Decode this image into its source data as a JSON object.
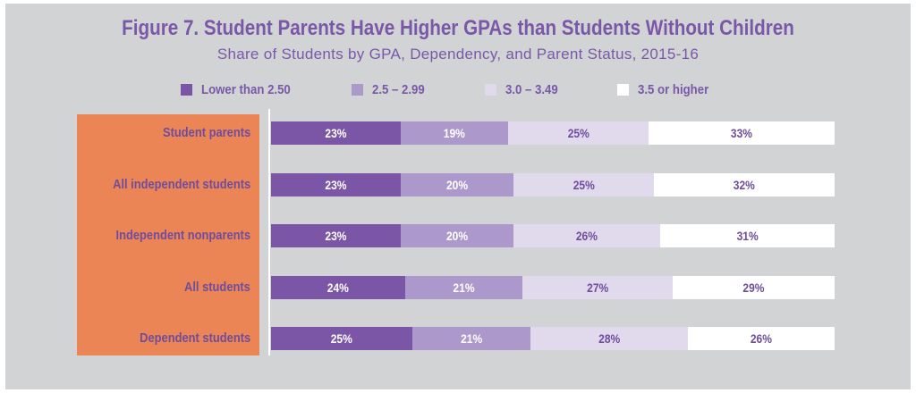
{
  "chart_data": {
    "type": "bar",
    "orientation": "horizontal",
    "stacked": true,
    "normalized_percent": true,
    "title": "Figure 7. Student Parents Have Higher GPAs than Students Without Children",
    "subtitle": "Share of Students by GPA, Dependency, and Parent Status, 2015-16",
    "legend_position": "top",
    "categories": [
      "Student parents",
      "All independent students",
      "Independent nonparents",
      "All students",
      "Dependent students"
    ],
    "series": [
      {
        "name": "Lower than 2.50",
        "color": "#7b56a7",
        "label_color": "#ffffff",
        "values": [
          23,
          23,
          23,
          24,
          25
        ],
        "labels": [
          "23%",
          "23%",
          "23%",
          "24%",
          "25%"
        ]
      },
      {
        "name": "2.5 – 2.99",
        "color": "#ad98cc",
        "label_color": "#ffffff",
        "values": [
          19,
          20,
          20,
          21,
          21
        ],
        "labels": [
          "19%",
          "20%",
          "20%",
          "21%",
          "21%"
        ]
      },
      {
        "name": "3.0 – 3.49",
        "color": "#e1d9ec",
        "label_color": "#6f4d9c",
        "values": [
          25,
          25,
          26,
          27,
          28
        ],
        "labels": [
          "25%",
          "25%",
          "26%",
          "27%",
          "28%"
        ]
      },
      {
        "name": "3.5 or higher",
        "color": "#ffffff",
        "label_color": "#6f4d9c",
        "values": [
          33,
          32,
          31,
          29,
          26
        ],
        "labels": [
          "33%",
          "32%",
          "31%",
          "29%",
          "26%"
        ]
      }
    ]
  },
  "colors": {
    "background": "#d2d3d5",
    "label_panel": "#ec8556",
    "title": "#7a58a8"
  }
}
